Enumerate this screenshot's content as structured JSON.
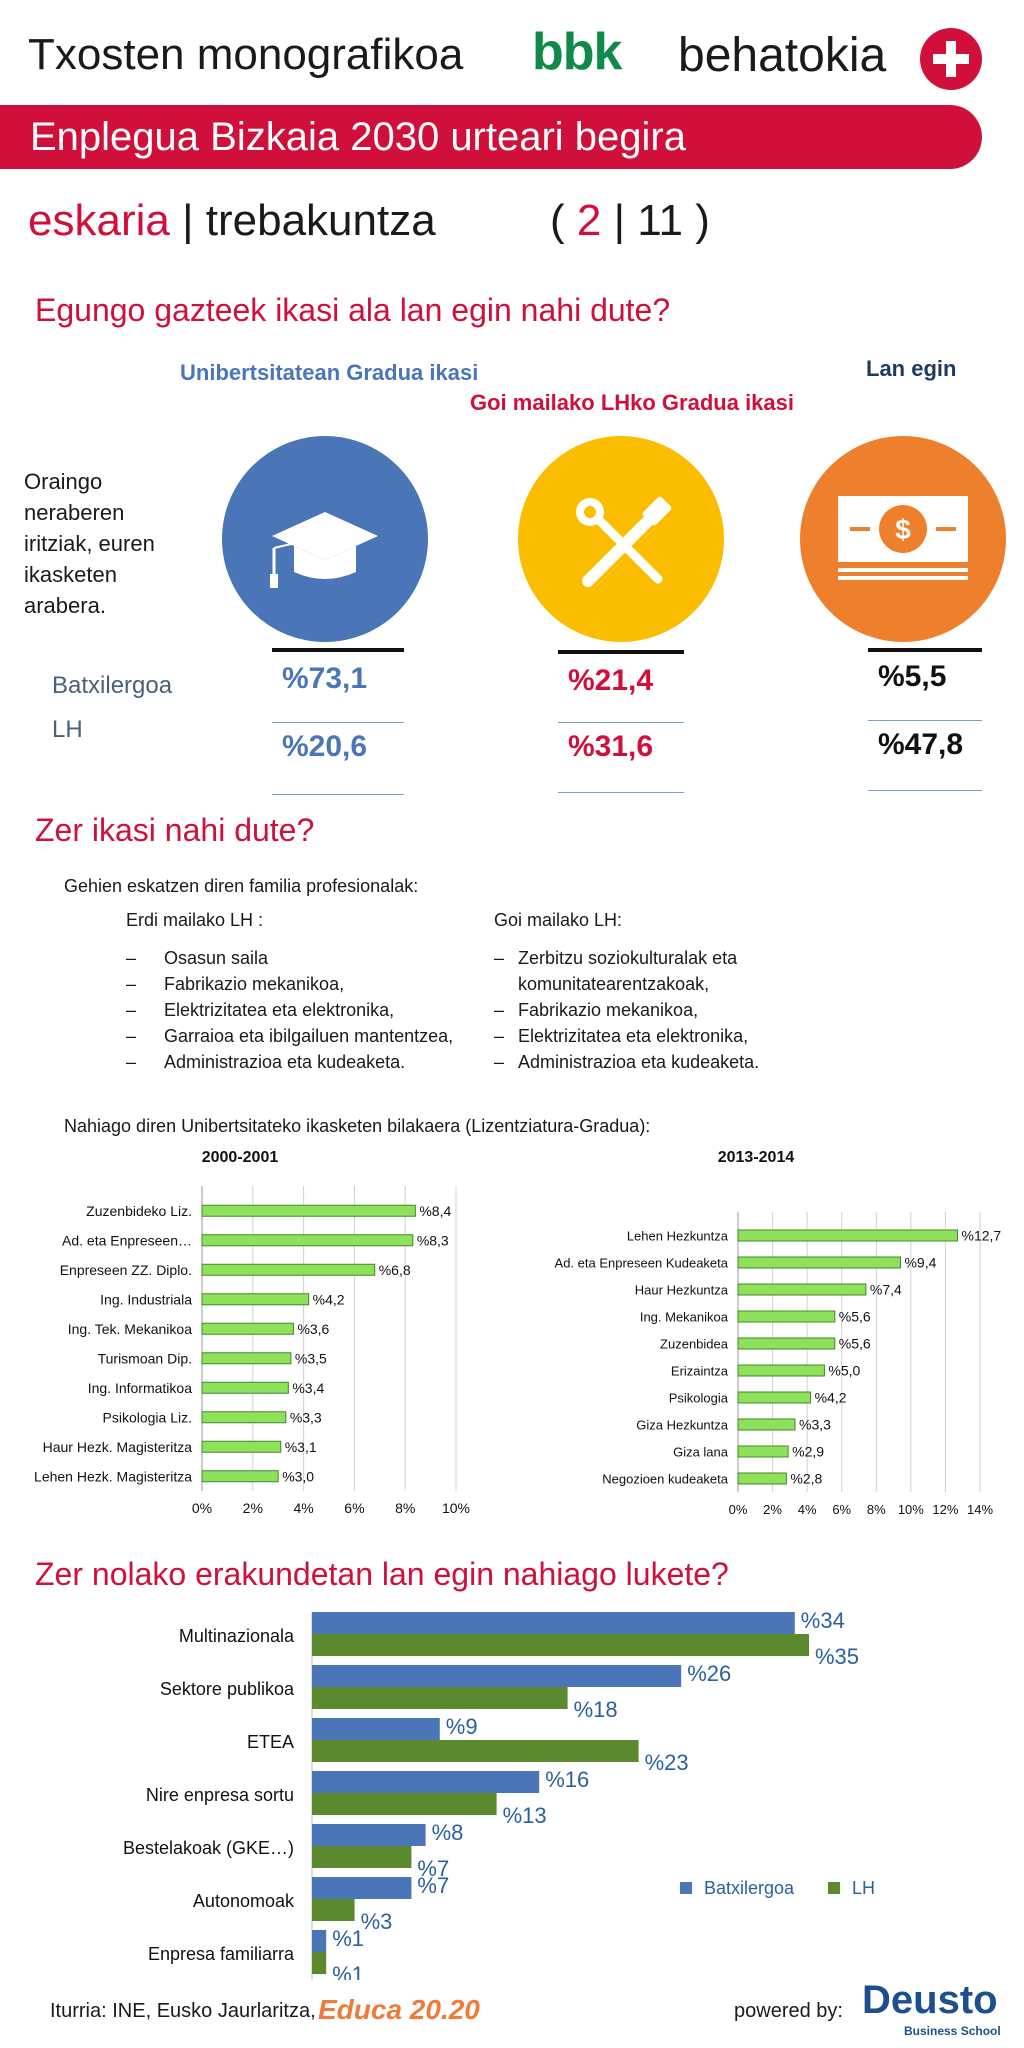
{
  "header": {
    "title": "Txosten monografikoa",
    "brand_bbk": "bbk",
    "brand_behatokia": "behatokia",
    "banner": "Enplegua Bizkaia 2030 urteari begira",
    "subtitle_red": "eskaria",
    "subtitle_sep": "|",
    "subtitle_rest": "trebakuntza",
    "page_open": "(",
    "page_current": "2",
    "page_sep": "|",
    "page_total": "11",
    "page_close": ")"
  },
  "section1": {
    "title": "Egungo gazteek  ikasi ala lan egin nahi dute?",
    "side_text": [
      "Oraingo",
      "neraberen",
      "iritziak, euren",
      "ikasketen",
      "arabera."
    ],
    "row_labels": [
      "Batxilergoa",
      "LH"
    ],
    "columns": [
      {
        "heading": "Unibertsitatean Gradua ikasi",
        "color": "#4a76b8",
        "icon": "graduation-cap-icon",
        "batxilergoa": "%73,1",
        "lh": "%20,6"
      },
      {
        "heading": "Goi mailako LHko Gradua ikasi",
        "color": "#fbbd00",
        "icon": "wrench-screwdriver-icon",
        "batxilergoa": "%21,4",
        "lh": "%31,6"
      },
      {
        "heading": "Lan egin",
        "color": "#ee7f2d",
        "icon": "money-icon",
        "batxilergoa": "%5,5",
        "lh": "%47,8"
      }
    ]
  },
  "section2": {
    "title": "Zer ikasi nahi dute?",
    "intro": "Gehien eskatzen diren familia profesionalak:",
    "left_heading": "Erdi mailako LH :",
    "left_items": [
      "Osasun saila",
      "Fabrikazio mekanikoa,",
      "Elektrizitatea eta elektronika,",
      "Garraioa eta ibilgailuen mantentzea,",
      "Administrazioa eta kudeaketa."
    ],
    "right_heading": "Goi mailako LH:",
    "right_items": [
      "Zerbitzu soziokulturalak eta komunitatearentzakoak,",
      "Fabrikazio mekanikoa,",
      "Elektrizitatea eta elektronika,",
      "Administrazioa eta kudeaketa."
    ],
    "chart_intro": "Nahiago diren Unibertsitateko ikasketen bilakaera  (Lizentziatura-Gradua):"
  },
  "section3": {
    "title": "Zer nolako erakundetan lan egin nahiago lukete?"
  },
  "footer": {
    "source": "Iturria: INE, Eusko Jaurlaritza,",
    "educa": "Educa 20.20",
    "powered": "powered by:",
    "deusto": "Deusto",
    "deusto_sub": "Business School"
  },
  "colors": {
    "accent_red": "#d0103a",
    "bar_green_light": "#8fe05a",
    "bar_blue": "#4a76b8",
    "bar_green_dark": "#5b8a2e",
    "label_blue": "#2a4f85"
  },
  "chart_data": [
    {
      "type": "bar",
      "orientation": "horizontal",
      "title": "2000-2001",
      "categories": [
        "Zuzenbideko Liz.",
        "Ad. eta Enpreseen…",
        "Enpreseen ZZ. Diplo.",
        "Ing. Industriala",
        "Ing. Tek. Mekanikoa",
        "Turismoan Dip.",
        "Ing. Informatikoa",
        "Psikologia Liz.",
        "Haur Hezk. Magisteritza",
        "Lehen Hezk. Magisteritza"
      ],
      "values": [
        8.4,
        8.3,
        6.8,
        4.2,
        3.6,
        3.5,
        3.4,
        3.3,
        3.1,
        3.0
      ],
      "labels": [
        "%8,4",
        "%8,3",
        "%6,8",
        "%4,2",
        "%3,6",
        "%3,5",
        "%3,4",
        "%3,3",
        "%3,1",
        "%3,0"
      ],
      "xlim": [
        0,
        10
      ],
      "ticks": [
        "0%",
        "2%",
        "4%",
        "6%",
        "8%",
        "10%"
      ],
      "grid": true
    },
    {
      "type": "bar",
      "orientation": "horizontal",
      "title": "2013-2014",
      "categories": [
        "Lehen Hezkuntza",
        "Ad. eta Enpreseen Kudeaketa",
        "Haur Hezkuntza",
        "Ing. Mekanikoa",
        "Zuzenbidea",
        "Erizaintza",
        "Psikologia",
        "Giza Hezkuntza",
        "Giza lana",
        "Negozioen kudeaketa"
      ],
      "values": [
        12.7,
        9.4,
        7.4,
        5.6,
        5.6,
        5.0,
        4.2,
        3.3,
        2.9,
        2.8
      ],
      "labels": [
        "%12,7",
        "%9,4",
        "%7,4",
        "%5,6",
        "%5,6",
        "%5,0",
        "%4,2",
        "%3,3",
        "%2,9",
        "%2,8"
      ],
      "xlim": [
        0,
        14
      ],
      "ticks": [
        "0%",
        "2%",
        "4%",
        "6%",
        "8%",
        "10%",
        "12%",
        "14%"
      ],
      "grid": true
    },
    {
      "type": "bar",
      "orientation": "horizontal",
      "categories": [
        "Multinazionala",
        "Sektore publikoa",
        "ETEA",
        "Nire enpresa sortu",
        "Bestelakoak (GKE…)",
        "Autonomoak",
        "Enpresa familiarra"
      ],
      "series": [
        {
          "name": "Batxilergoa",
          "values": [
            34,
            26,
            9,
            16,
            8,
            7,
            1
          ],
          "labels": [
            "%34",
            "%26",
            "%9",
            "%16",
            "%8",
            "%7",
            "%1"
          ]
        },
        {
          "name": "LH",
          "values": [
            35,
            18,
            23,
            13,
            7,
            3,
            1
          ],
          "labels": [
            "%35",
            "%18",
            "%23",
            "%13",
            "%7",
            "%3",
            "%1"
          ]
        }
      ],
      "xlim": [
        0,
        40
      ],
      "grid": false,
      "legend": "bottom-right"
    }
  ]
}
